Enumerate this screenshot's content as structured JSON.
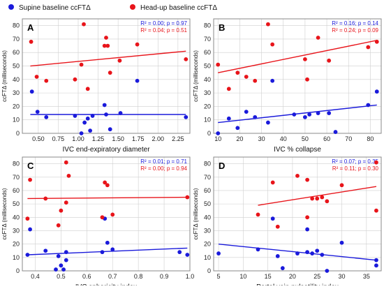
{
  "legend": {
    "items": [
      {
        "label": "Supine baseline ccFTΔ",
        "color": "#1a1adb"
      },
      {
        "label": "Head-up baseline ccFTΔ",
        "color": "#e8141a"
      }
    ]
  },
  "colors": {
    "blue": "#1a1adb",
    "red": "#e8141a",
    "frame": "#888888",
    "grid": "#cfcfcf"
  },
  "chart_data": [
    {
      "type": "scatter",
      "panel": "A",
      "xlabel": "IVC end-expiratory diameter",
      "ylabel": "ccFTΔ (milliseconds)",
      "xlim": [
        0.3,
        2.4
      ],
      "ylim": [
        0,
        85
      ],
      "xticks": [
        0.5,
        0.75,
        1.0,
        1.25,
        1.5,
        1.75,
        2.0,
        2.25
      ],
      "xtick_labels": [
        "0.50",
        "0.75",
        "1.00",
        "1.25",
        "1.50",
        "1.75",
        "2.00",
        "2.25"
      ],
      "yticks": [
        0,
        10,
        20,
        30,
        40,
        50,
        60,
        70,
        80
      ],
      "stats": [
        {
          "series": "supine",
          "text": "R² = 0.00; p = 0.97"
        },
        {
          "series": "headup",
          "text": "R² = 0.04; p = 0.51"
        }
      ],
      "series": [
        {
          "key": "supine",
          "name": "Supine baseline ccFTΔ",
          "color": "#1a1adb",
          "x": [
            0.42,
            0.49,
            0.6,
            0.96,
            1.04,
            1.08,
            1.12,
            1.15,
            1.18,
            1.33,
            1.35,
            1.4,
            1.53,
            1.74,
            2.35
          ],
          "y": [
            31,
            16,
            12,
            13,
            0,
            8,
            11,
            2,
            13,
            21,
            14,
            3,
            15,
            39,
            12
          ],
          "fit": [
            [
              0.4,
              14
            ],
            [
              2.35,
              14
            ]
          ]
        },
        {
          "key": "headup",
          "name": "Head-up baseline ccFTΔ",
          "color": "#e8141a",
          "x": [
            0.41,
            0.48,
            0.6,
            0.96,
            1.04,
            1.07,
            1.12,
            1.33,
            1.35,
            1.37,
            1.4,
            1.52,
            1.74,
            2.35
          ],
          "y": [
            68,
            42,
            39,
            40,
            51,
            81,
            33,
            65,
            71,
            65,
            45,
            54,
            66,
            55
          ],
          "fit": [
            [
              0.4,
              50
            ],
            [
              2.35,
              61
            ]
          ]
        }
      ]
    },
    {
      "type": "scatter",
      "panel": "B",
      "xlabel": "IVC % collapse",
      "ylabel": "ccFTΔ (milliseconds)",
      "xlim": [
        8,
        85
      ],
      "ylim": [
        0,
        85
      ],
      "xticks": [
        10,
        20,
        30,
        40,
        50,
        60,
        70,
        80
      ],
      "xtick_labels": [
        "10",
        "20",
        "30",
        "40",
        "50",
        "60",
        "70",
        "80"
      ],
      "yticks": [
        0,
        10,
        20,
        30,
        40,
        50,
        60,
        70,
        80
      ],
      "stats": [
        {
          "series": "supine",
          "text": "R² = 0.16; p = 0.14"
        },
        {
          "series": "headup",
          "text": "R² = 0.24; p = 0.09"
        }
      ],
      "series": [
        {
          "key": "supine",
          "name": "Supine baseline ccFTΔ",
          "color": "#1a1adb",
          "x": [
            10,
            15,
            19,
            23,
            27,
            33,
            35,
            45,
            50,
            52,
            56,
            61,
            64,
            79,
            83
          ],
          "y": [
            0,
            11,
            4,
            16,
            12,
            8,
            39,
            14,
            12,
            14,
            15,
            15,
            1,
            21,
            31
          ],
          "fit": [
            [
              10,
              8
            ],
            [
              83,
              21
            ]
          ]
        },
        {
          "key": "headup",
          "name": "Head-up baseline ccFTΔ",
          "color": "#e8141a",
          "x": [
            10,
            15,
            19,
            23,
            27,
            33,
            35,
            50,
            51,
            56,
            61,
            79,
            83
          ],
          "y": [
            51,
            33,
            45,
            42,
            39,
            81,
            66,
            55,
            40,
            71,
            54,
            64,
            68
          ],
          "fit": [
            [
              10,
              45
            ],
            [
              83,
              69
            ]
          ]
        }
      ]
    },
    {
      "type": "scatter",
      "panel": "C",
      "xlabel": "IVC sphericity index",
      "ylabel": "ccFTΔ (milliseconds)",
      "xlim": [
        0.35,
        1.0
      ],
      "ylim": [
        0,
        85
      ],
      "xticks": [
        0.4,
        0.5,
        0.6,
        0.7,
        0.8,
        0.9,
        1.0
      ],
      "xtick_labels": [
        "0.4",
        "0.5",
        "0.6",
        "0.7",
        "0.8",
        "0.9",
        "1.0"
      ],
      "yticks": [
        0,
        10,
        20,
        30,
        40,
        50,
        60,
        70,
        80
      ],
      "stats": [
        {
          "series": "supine",
          "text": "R² = 0.01; p = 0.71"
        },
        {
          "series": "headup",
          "text": "R² = 0.00; p = 0.94"
        }
      ],
      "series": [
        {
          "key": "supine",
          "name": "Supine baseline ccFTΔ",
          "color": "#1a1adb",
          "x": [
            0.37,
            0.38,
            0.44,
            0.48,
            0.49,
            0.5,
            0.51,
            0.52,
            0.52,
            0.66,
            0.67,
            0.68,
            0.7,
            0.96,
            0.99
          ],
          "y": [
            12,
            31,
            15,
            1,
            11,
            4,
            1,
            8,
            14,
            14,
            39,
            21,
            16,
            14,
            12
          ],
          "fit": [
            [
              0.37,
              12
            ],
            [
              0.99,
              17
            ]
          ]
        },
        {
          "key": "headup",
          "name": "Head-up baseline ccFTΔ",
          "color": "#e8141a",
          "x": [
            0.37,
            0.38,
            0.44,
            0.49,
            0.5,
            0.52,
            0.52,
            0.53,
            0.66,
            0.67,
            0.68,
            0.7,
            0.99
          ],
          "y": [
            39,
            68,
            54,
            34,
            45,
            51,
            81,
            71,
            40,
            66,
            64,
            42,
            55
          ],
          "fit": [
            [
              0.37,
              54
            ],
            [
              0.99,
              55
            ]
          ]
        }
      ]
    },
    {
      "type": "scatter",
      "panel": "D",
      "xlabel": "Portal vein pulsatility index",
      "ylabel": "ccFTΔ (milliseconds)",
      "xlim": [
        4,
        38
      ],
      "ylim": [
        0,
        85
      ],
      "xticks": [
        5,
        10,
        15,
        20,
        25,
        30,
        35
      ],
      "xtick_labels": [
        "5",
        "10",
        "15",
        "20",
        "25",
        "30",
        "35"
      ],
      "yticks": [
        0,
        10,
        20,
        30,
        40,
        50,
        60,
        70,
        80
      ],
      "stats": [
        {
          "series": "supine",
          "text": "R² = 0.07; p = 0.35"
        },
        {
          "series": "headup",
          "text": "R² = 0.11; p = 0.30"
        }
      ],
      "series": [
        {
          "key": "supine",
          "name": "Supine baseline ccFTΔ",
          "color": "#1a1adb",
          "x": [
            5,
            13,
            16,
            17,
            18,
            21,
            23,
            23,
            24,
            25,
            26,
            27,
            30,
            37,
            37
          ],
          "y": [
            13,
            16,
            39,
            11,
            2,
            13,
            31,
            14,
            13,
            15,
            12,
            0,
            21,
            8,
            4
          ],
          "fit": [
            [
              5,
              20
            ],
            [
              37,
              8
            ]
          ]
        },
        {
          "key": "headup",
          "name": "Head-up baseline ccFTΔ",
          "color": "#e8141a",
          "x": [
            13,
            16,
            17,
            21,
            23,
            23,
            24,
            25,
            26,
            27,
            30,
            37,
            37
          ],
          "y": [
            42,
            66,
            33,
            71,
            68,
            40,
            54,
            54,
            55,
            52,
            64,
            81,
            45
          ],
          "fit": [
            [
              13,
              49
            ],
            [
              37,
              63
            ]
          ]
        }
      ]
    }
  ]
}
